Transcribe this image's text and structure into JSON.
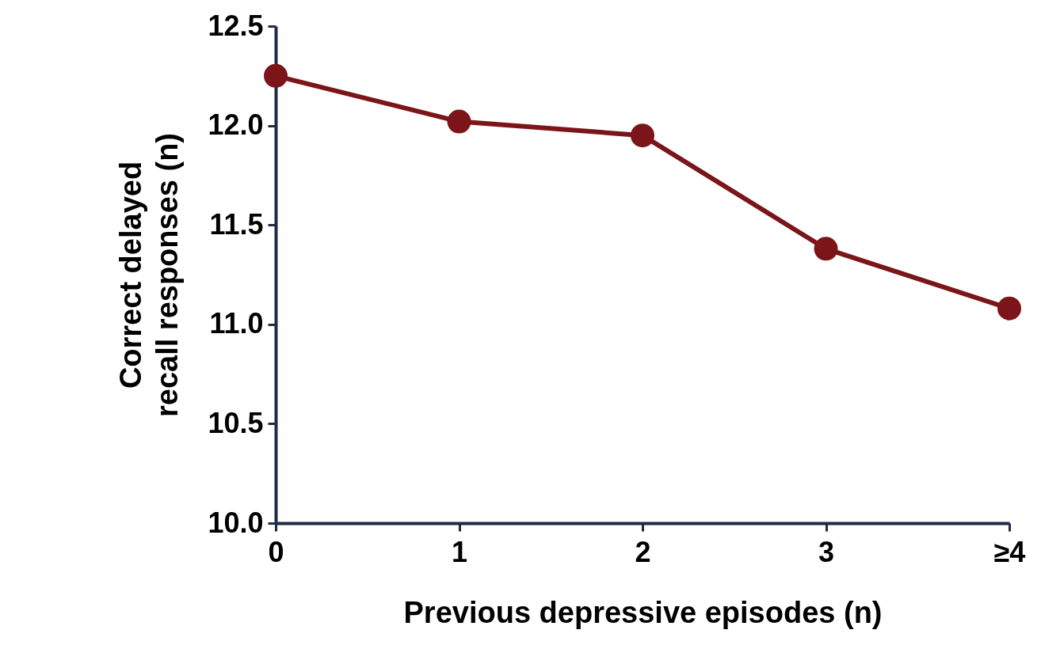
{
  "chart_data": {
    "type": "line",
    "xlabel": "Previous depressive episodes (n)",
    "ylabel": "Correct delayed\nrecall responses (n)",
    "categories": [
      "0",
      "1",
      "2",
      "3",
      "≥4"
    ],
    "series": [
      {
        "color": "#7b1519",
        "values": [
          12.25,
          12.02,
          11.95,
          11.38,
          11.08
        ]
      }
    ],
    "ylim": [
      10,
      12.5
    ],
    "yticks": [
      {
        "value": 10,
        "label": "10.0"
      },
      {
        "value": 10.5,
        "label": "10.5"
      },
      {
        "value": 11,
        "label": "11.0"
      },
      {
        "value": 11.5,
        "label": "11.5"
      },
      {
        "value": 12,
        "label": "12.0"
      },
      {
        "value": 12.5,
        "label": "12.5"
      }
    ],
    "grid": false,
    "marker": "circle",
    "line_style": "solid"
  }
}
